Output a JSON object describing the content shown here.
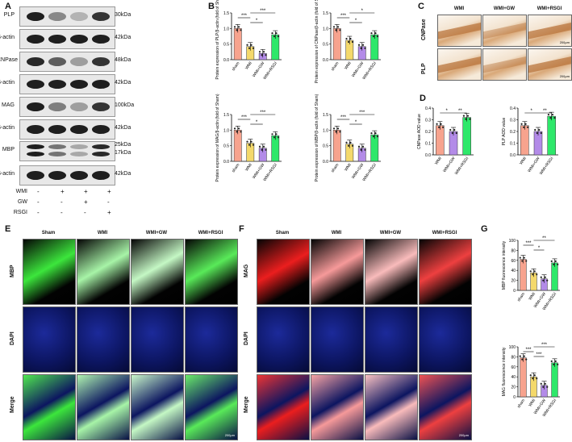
{
  "panels": {
    "A": "A",
    "B": "B",
    "C": "C",
    "D": "D",
    "E": "E",
    "F": "F",
    "G": "G"
  },
  "western": {
    "rows": [
      {
        "name": "PLP",
        "kda": "30kDa"
      },
      {
        "name": "β-actin",
        "kda": "42kDa"
      },
      {
        "name": "CNPase",
        "kda": "48kDa"
      },
      {
        "name": "β-actin",
        "kda": "42kDa"
      },
      {
        "name": "MAG",
        "kda": "100kDa"
      },
      {
        "name": "β-actin",
        "kda": "42kDa"
      },
      {
        "name": "MBP",
        "kda": "25kDa",
        "kda2": "17kDa"
      },
      {
        "name": "β-actin",
        "kda": "42kDa"
      }
    ],
    "conditions": [
      {
        "label": "WMI",
        "signs": [
          "-",
          "+",
          "+",
          "+"
        ]
      },
      {
        "label": "GW",
        "signs": [
          "-",
          "-",
          "+",
          "-"
        ]
      },
      {
        "label": "RSGI",
        "signs": [
          "-",
          "-",
          "-",
          "+"
        ]
      }
    ]
  },
  "groups": [
    "sham",
    "WMI",
    "WMI+GW",
    "WMI+RSGI"
  ],
  "groups_c": [
    "WMI",
    "WMI+GW",
    "WMI+RSGI"
  ],
  "groups_if": [
    "Sham",
    "WMI",
    "WMI+GW",
    "WMI+RSGI"
  ],
  "colors": {
    "sham": "#f7a38e",
    "wmi": "#f4d96b",
    "gw": "#b38be8",
    "rsgi": "#2ee86a"
  },
  "charts": {
    "plp": {
      "ylabel": "Protein expression of PLP/β-actin (fold of Sham)",
      "values": [
        1.0,
        0.42,
        0.2,
        0.8
      ],
      "ymax": 1.5,
      "ticks": [
        "0.0",
        "0.5",
        "1.0",
        "1.5"
      ],
      "sig": [
        "***",
        "*",
        "***"
      ]
    },
    "cnp": {
      "ylabel": "Protein expression of CNPase/β-actin (fold of Sham)",
      "values": [
        1.0,
        0.62,
        0.42,
        0.8
      ],
      "ymax": 1.5,
      "ticks": [
        "0.0",
        "0.5",
        "1.0",
        "1.5"
      ],
      "sig": [
        "***",
        "*",
        "*"
      ]
    },
    "mag": {
      "ylabel": "Protein expression of MAG/β-actin (fold of Sham)",
      "values": [
        1.0,
        0.58,
        0.42,
        0.82
      ],
      "ymax": 1.5,
      "ticks": [
        "0.0",
        "0.5",
        "1.0",
        "1.5"
      ],
      "sig": [
        "***",
        "*",
        "***"
      ]
    },
    "mbp": {
      "ylabel": "Protein expression of MBP/β-actin (fold of Sham)",
      "values": [
        1.0,
        0.55,
        0.42,
        0.85
      ],
      "ymax": 1.5,
      "ticks": [
        "0.0",
        "0.5",
        "1.0",
        "1.5"
      ],
      "sig": [
        "***",
        "*",
        "***"
      ]
    },
    "cnpaod": {
      "ylabel": "CNPase AOD value",
      "values": [
        0.25,
        0.2,
        0.32
      ],
      "ymax": 0.4,
      "ticks": [
        "0.0",
        "0.1",
        "0.2",
        "0.3",
        "0.4"
      ],
      "sig": [
        "*",
        "**"
      ]
    },
    "plpaod": {
      "ylabel": "PLP AOD value",
      "values": [
        0.25,
        0.2,
        0.33
      ],
      "ymax": 0.4,
      "ticks": [
        "0.0",
        "0.1",
        "0.2",
        "0.3",
        "0.4"
      ],
      "sig": [
        "*",
        "**"
      ]
    },
    "mbpfi": {
      "ylabel": "MBP fluorescence intensity",
      "values": [
        62,
        35,
        23,
        55
      ],
      "ymax": 100,
      "ticks": [
        "0",
        "20",
        "40",
        "60",
        "80",
        "100"
      ],
      "sig": [
        "***",
        "*",
        "**"
      ]
    },
    "magfi": {
      "ylabel": "MAG fluorescence intensity",
      "values": [
        78,
        40,
        23,
        68
      ],
      "ymax": 100,
      "ticks": [
        "0",
        "20",
        "40",
        "60",
        "80",
        "100"
      ],
      "sig": [
        "***",
        "***",
        "***"
      ]
    }
  },
  "ihc": {
    "rows": [
      "CNPase",
      "PLP"
    ],
    "scale": "200μm"
  },
  "if_e": {
    "rows": [
      "MBP",
      "DAPI",
      "Merge"
    ],
    "scale": "200μm"
  },
  "if_f": {
    "rows": [
      "MAG",
      "DAPI",
      "Merge"
    ],
    "scale": "200μm"
  }
}
